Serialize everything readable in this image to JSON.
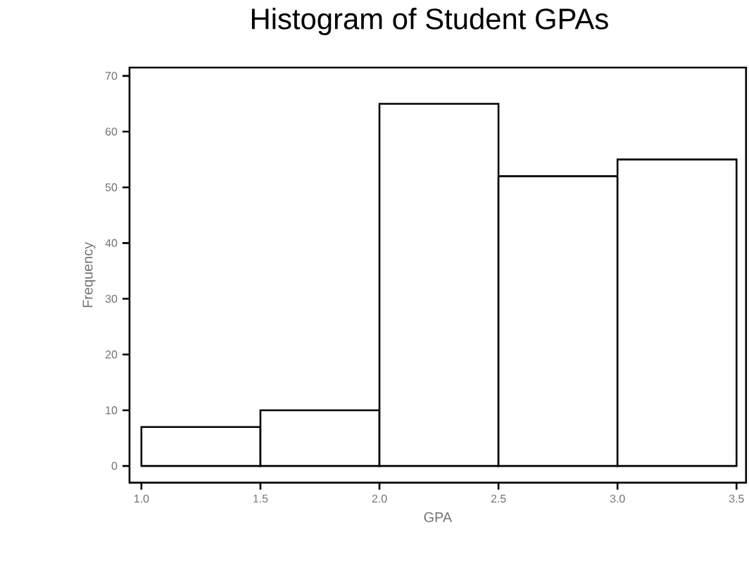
{
  "chart_data": {
    "type": "histogram",
    "title": "Histogram of Student GPAs",
    "xlabel": "GPA",
    "ylabel": "Frequency",
    "bins": [
      1.0,
      1.5,
      2.0,
      2.5,
      3.0,
      3.5
    ],
    "values": [
      7,
      10,
      65,
      52,
      55
    ],
    "xlim": [
      0.95,
      3.54
    ],
    "ylim": [
      -3,
      71.5
    ],
    "xticks": [
      {
        "value": 1.0,
        "label": "1.0"
      },
      1.5,
      {
        "value": 2.0,
        "label": "2.0"
      },
      2.5,
      {
        "value": 3.0,
        "label": "3.0"
      },
      3.5
    ],
    "yticks": [
      0,
      10,
      20,
      30,
      40,
      50,
      60,
      70
    ]
  }
}
